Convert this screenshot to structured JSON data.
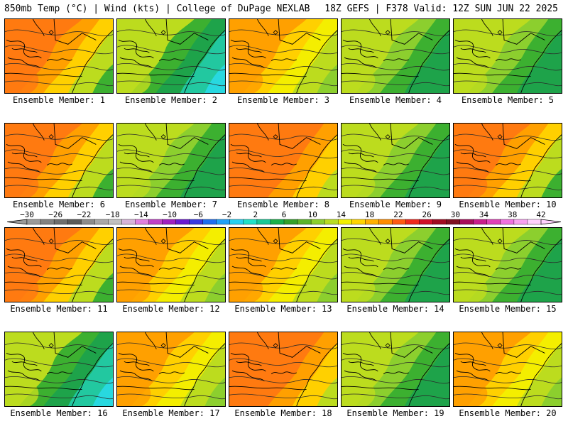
{
  "header": {
    "left_title": "850mb Temp (°C) | Wind (kts) | College of DuPage NEXLAB",
    "right_title": "18Z GEFS | F378 Valid: 12Z SUN JUN 22 2025"
  },
  "map_panels": [
    {
      "label": "Ensemble Member: 1",
      "scheme": "warm"
    },
    {
      "label": "Ensemble Member: 2",
      "scheme": "cool"
    },
    {
      "label": "Ensemble Member: 3",
      "scheme": "yellow"
    },
    {
      "label": "Ensemble Member: 4",
      "scheme": "green"
    },
    {
      "label": "Ensemble Member: 5",
      "scheme": "green"
    },
    {
      "label": "Ensemble Member: 6",
      "scheme": "warm"
    },
    {
      "label": "Ensemble Member: 7",
      "scheme": "green"
    },
    {
      "label": "Ensemble Member: 8",
      "scheme": "hot"
    },
    {
      "label": "Ensemble Member: 9",
      "scheme": "green"
    },
    {
      "label": "Ensemble Member: 10",
      "scheme": "warm"
    },
    {
      "label": "Ensemble Member: 11",
      "scheme": "warm"
    },
    {
      "label": "Ensemble Member: 12",
      "scheme": "yellow"
    },
    {
      "label": "Ensemble Member: 13",
      "scheme": "yellow"
    },
    {
      "label": "Ensemble Member: 14",
      "scheme": "green"
    },
    {
      "label": "Ensemble Member: 15",
      "scheme": "green"
    },
    {
      "label": "Ensemble Member: 16",
      "scheme": "cool"
    },
    {
      "label": "Ensemble Member: 17",
      "scheme": "yellow"
    },
    {
      "label": "Ensemble Member: 18",
      "scheme": "hot"
    },
    {
      "label": "Ensemble Member: 19",
      "scheme": "green"
    },
    {
      "label": "Ensemble Member: 20",
      "scheme": "yellow"
    }
  ],
  "colorbar": {
    "labels": [
      "−30",
      "−26",
      "−22",
      "−18",
      "−14",
      "−10",
      "−6",
      "−2",
      "2",
      "6",
      "10",
      "14",
      "18",
      "22",
      "26",
      "30",
      "34",
      "38",
      "42"
    ],
    "colors": [
      "#9a9a9a",
      "#828282",
      "#6e6e6e",
      "#5a5a5a",
      "#8c8c8c",
      "#a8a8a8",
      "#c0c0c0",
      "#d7b3d9",
      "#e07fe0",
      "#c040c8",
      "#a020c0",
      "#6a1ad0",
      "#3a3ae0",
      "#1e6ef0",
      "#20a0f8",
      "#28d0f0",
      "#20e0c8",
      "#18c896",
      "#1ab04a",
      "#34a02a",
      "#5cb42a",
      "#8ccf2e",
      "#b8dc22",
      "#f2f000",
      "#ffd400",
      "#ffb000",
      "#ff8c00",
      "#ff5a14",
      "#f0281e",
      "#d0102a",
      "#a00c22",
      "#801020",
      "#a80c5a",
      "#c81c8c",
      "#e040b8",
      "#f070e0",
      "#f8a0f0",
      "#ffd0ff"
    ]
  },
  "palette": {
    "cyan": "#28d8e0",
    "teal": "#22c8a0",
    "dkgreen": "#1ea34a",
    "green": "#3cb030",
    "ltgreen": "#8ccf2e",
    "yellowgreen": "#bcdc1e",
    "yellow": "#f4ee00",
    "gold": "#ffd000",
    "orange": "#ffa000",
    "dkorange": "#ff7a10"
  }
}
